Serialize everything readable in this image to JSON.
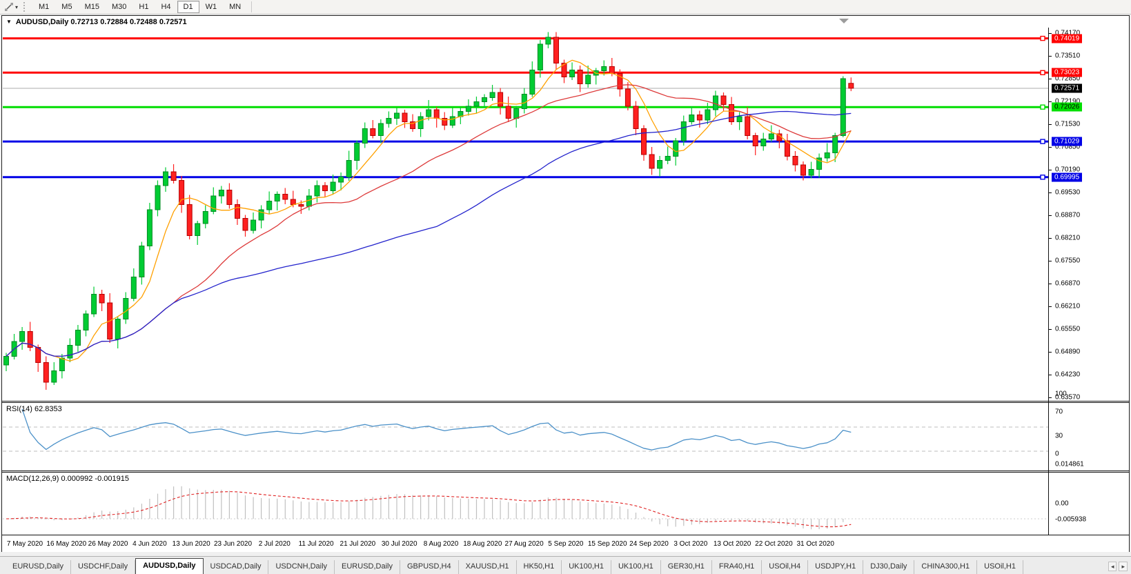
{
  "toolbar": {
    "timeframes": [
      "M1",
      "M5",
      "M15",
      "M30",
      "H1",
      "H4",
      "D1",
      "W1",
      "MN"
    ],
    "active_timeframe": "D1"
  },
  "icons": {
    "dropdown_caret": "▾",
    "title_caret": "▼",
    "tab_scroll_left": "◂",
    "tab_scroll_right": "▸"
  },
  "chart": {
    "title_line": "AUDUSD,Daily  0.72713 0.72884 0.72488 0.72571",
    "symbol": "AUDUSD",
    "period": "Daily",
    "current_bar_ohlc": {
      "open": "0.72713",
      "high": "0.72884",
      "low": "0.72488",
      "close": "0.72571"
    }
  },
  "price_axis": {
    "ticks": [
      "0.74170",
      "0.73510",
      "0.72850",
      "0.72190",
      "0.71530",
      "0.70850",
      "0.70190",
      "0.69530",
      "0.68870",
      "0.68210",
      "0.67550",
      "0.66870",
      "0.66210",
      "0.65550",
      "0.64890",
      "0.64230",
      "0.63570"
    ]
  },
  "date_axis": {
    "labels": [
      "7 May 2020",
      "16 May 2020",
      "26 May 2020",
      "4 Jun 2020",
      "13 Jun 2020",
      "23 Jun 2020",
      "2 Jul 2020",
      "11 Jul 2020",
      "21 Jul 2020",
      "30 Jul 2020",
      "8 Aug 2020",
      "18 Aug 2020",
      "27 Aug 2020",
      "5 Sep 2020",
      "15 Sep 2020",
      "24 Sep 2020",
      "3 Oct 2020",
      "13 Oct 2020",
      "22 Oct 2020",
      "31 Oct 2020"
    ]
  },
  "rsi": {
    "label": "RSI(14) 62.8353",
    "period": 14,
    "value": 62.8353,
    "axis_labels": [
      {
        "text": "100",
        "v": 100
      },
      {
        "text": "70",
        "v": 70
      },
      {
        "text": "30",
        "v": 30
      },
      {
        "text": "0",
        "v": 0
      }
    ],
    "level_lines": [
      70,
      30
    ]
  },
  "macd": {
    "label": "MACD(12,26,9) 0.000992 -0.001915",
    "params": "12,26,9",
    "macd_value": 0.000992,
    "signal_value": -0.001915,
    "axis_labels": [
      {
        "text": "0.014861",
        "v": 0.014861
      },
      {
        "text": "0.00",
        "v": 0
      },
      {
        "text": "-0.005938",
        "v": -0.005938
      }
    ]
  },
  "levels": [
    {
      "label": "0.74019",
      "value": 0.74019,
      "color": "#FF0000",
      "badge_bg": "#FF0000",
      "badge_text": "#FFFFFF"
    },
    {
      "label": "0.73023",
      "value": 0.73023,
      "color": "#FF0000",
      "badge_bg": "#FF0000",
      "badge_text": "#FFFFFF"
    },
    {
      "label": "0.72026",
      "value": 0.72026,
      "color": "#00DD00",
      "badge_bg": "#00DF00",
      "badge_text": "#000000"
    },
    {
      "label": "0.71029",
      "value": 0.71029,
      "color": "#0000E6",
      "badge_bg": "#0000E6",
      "badge_text": "#FFFFFF"
    },
    {
      "label": "0.69995",
      "value": 0.69995,
      "color": "#0000E6",
      "badge_bg": "#0000E6",
      "badge_text": "#FFFFFF"
    }
  ],
  "current_price": {
    "label": "0.72571",
    "value": 0.72571,
    "line_color": "#ABABAB",
    "badge_bg": "#000000",
    "badge_text": "#FFFFFF"
  },
  "colors": {
    "bull_fill": "#00CC33",
    "bull_stroke": "#008A22",
    "bear_fill": "#FF2020",
    "bear_stroke": "#B30000",
    "ma_fast": "#FFA000",
    "ma_mid": "#DD3A3A",
    "ma_slow": "#2222CC",
    "rsi_line": "#4A90C8",
    "rsi_dash": "#BDBDBD",
    "macd_hist": "#C0C0C0",
    "macd_signal": "#E02020",
    "macd_zero": "#CCCCCC"
  },
  "chart_data": {
    "type": "candlestick",
    "symbol": "AUDUSD",
    "timeframe": "Daily",
    "first_open": 0.6455,
    "closes": [
      0.648,
      0.6523,
      0.6552,
      0.6506,
      0.6462,
      0.6405,
      0.6438,
      0.6475,
      0.6512,
      0.6556,
      0.6603,
      0.666,
      0.6635,
      0.653,
      0.6588,
      0.6648,
      0.671,
      0.68,
      0.6905,
      0.6975,
      0.7015,
      0.699,
      0.692,
      0.683,
      0.6865,
      0.69,
      0.6945,
      0.6962,
      0.692,
      0.688,
      0.6845,
      0.6875,
      0.6905,
      0.693,
      0.695,
      0.6935,
      0.692,
      0.6915,
      0.6945,
      0.6975,
      0.696,
      0.6985,
      0.7,
      0.7048,
      0.7098,
      0.714,
      0.712,
      0.7155,
      0.717,
      0.7185,
      0.716,
      0.714,
      0.7175,
      0.7195,
      0.717,
      0.715,
      0.7175,
      0.719,
      0.7205,
      0.7218,
      0.723,
      0.7245,
      0.7205,
      0.717,
      0.7198,
      0.724,
      0.731,
      0.7385,
      0.7405,
      0.733,
      0.729,
      0.731,
      0.727,
      0.7295,
      0.7308,
      0.732,
      0.73,
      0.7255,
      0.7205,
      0.714,
      0.7065,
      0.7025,
      0.7048,
      0.706,
      0.7105,
      0.716,
      0.718,
      0.7165,
      0.7195,
      0.7235,
      0.721,
      0.716,
      0.7175,
      0.712,
      0.709,
      0.711,
      0.7125,
      0.7105,
      0.706,
      0.7035,
      0.7005,
      0.7022,
      0.7055,
      0.707,
      0.712,
      0.7285,
      0.72571
    ],
    "wick_high_pattern": [
      0.001,
      0.0022,
      0.0013,
      0.0028,
      0.0008,
      0.0018,
      0.0025,
      0.0012,
      0.002,
      0.0015
    ],
    "wick_low_pattern": [
      0.0018,
      0.0009,
      0.0024,
      0.0011,
      0.0027,
      0.0014,
      0.0008,
      0.0022,
      0.0012,
      0.0019
    ],
    "overrides": {
      "5": {
        "low": 0.6383
      },
      "20": {
        "high": 0.7028
      },
      "68": {
        "high": 0.742
      },
      "81": {
        "low": 0.7006
      },
      "100": {
        "low": 0.699
      },
      "105": {
        "low": 0.7115,
        "high": 0.7292
      },
      "106": {
        "open": 0.72713,
        "high": 0.72884,
        "low": 0.72488,
        "close": 0.72571
      }
    },
    "moving_averages": [
      {
        "period": 6,
        "color_key": "ma_fast"
      },
      {
        "period": 22,
        "color_key": "ma_mid"
      },
      {
        "period": 55,
        "color_key": "ma_slow"
      }
    ],
    "y_axis_top_value": 0.7417,
    "y_axis_bottom_value": 0.6357
  },
  "tabs": {
    "items": [
      "EURUSD,Daily",
      "USDCHF,Daily",
      "AUDUSD,Daily",
      "USDCAD,Daily",
      "USDCNH,Daily",
      "EURUSD,Daily",
      "GBPUSD,H4",
      "XAUUSD,H1",
      "HK50,H1",
      "UK100,H1",
      "UK100,H1",
      "GER30,H1",
      "FRA40,H1",
      "USOil,H4",
      "USDJPY,H1",
      "DJ30,Daily",
      "CHINA300,H1",
      "USOil,H1"
    ],
    "active_index": 2
  }
}
